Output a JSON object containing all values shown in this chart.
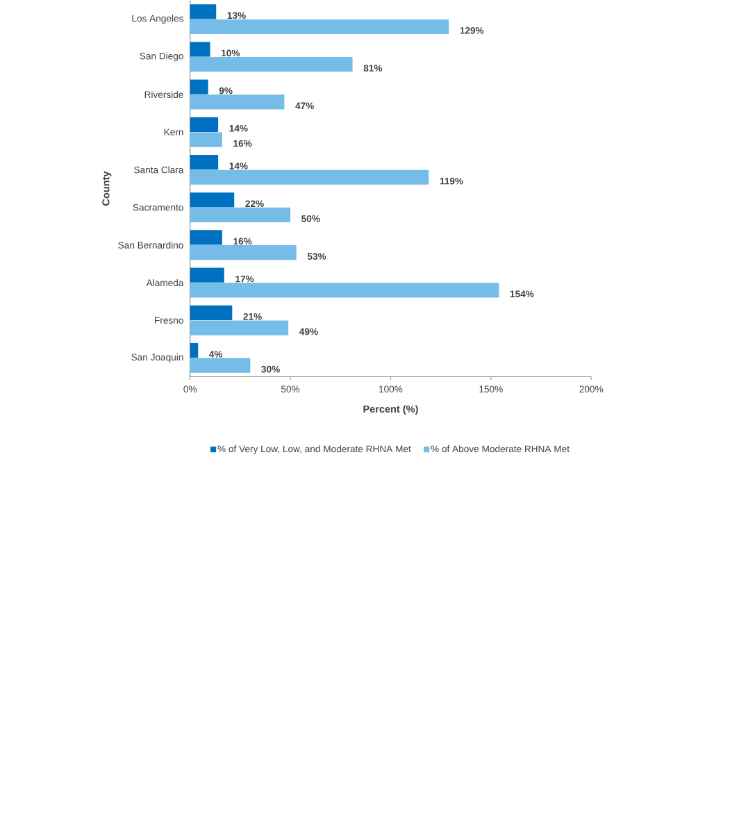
{
  "chart_data": {
    "type": "bar",
    "orientation": "horizontal",
    "xlabel": "Percent (%)",
    "ylabel": "County",
    "categories": [
      "Los Angeles",
      "San Diego",
      "Riverside",
      "Kern",
      "Santa Clara",
      "Sacramento",
      "San Bernardino",
      "Alameda",
      "Fresno",
      "San Joaquin"
    ],
    "series": [
      {
        "name": "% of Very Low, Low, and Moderate RHNA Met",
        "color": "#0070c0",
        "values": [
          13,
          10,
          9,
          14,
          14,
          22,
          16,
          17,
          21,
          4
        ],
        "value_labels": [
          "13%",
          "10%",
          "9%",
          "14%",
          "14%",
          "22%",
          "16%",
          "17%",
          "21%",
          "4%"
        ]
      },
      {
        "name": "% of Above Moderate RHNA Met",
        "color": "#75bde8",
        "values": [
          129,
          81,
          47,
          16,
          119,
          50,
          53,
          154,
          49,
          30
        ],
        "value_labels": [
          "129%",
          "81%",
          "47%",
          "16%",
          "119%",
          "50%",
          "53%",
          "154%",
          "49%",
          "30%"
        ]
      }
    ],
    "xlim": [
      0,
      200
    ],
    "xticks": [
      {
        "value": 0,
        "label": "0%"
      },
      {
        "value": 50,
        "label": "50%"
      },
      {
        "value": 100,
        "label": "100%"
      },
      {
        "value": 150,
        "label": "150%"
      },
      {
        "value": 200,
        "label": "200%"
      }
    ],
    "legend": "bottom"
  }
}
